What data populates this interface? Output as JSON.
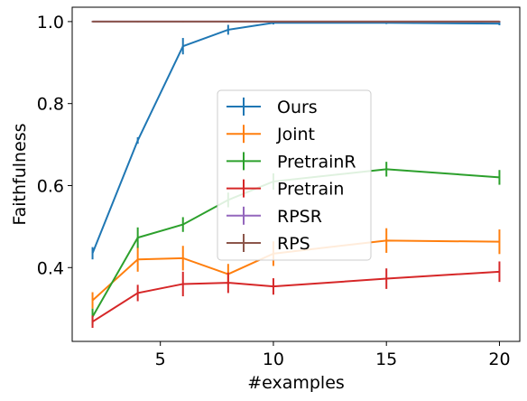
{
  "chart_data": {
    "type": "line",
    "xlabel": "#examples",
    "ylabel": "Faithfulness",
    "xlim": [
      1.1,
      20.9
    ],
    "ylim": [
      0.22,
      1.035
    ],
    "xticks": [
      5,
      10,
      15,
      20
    ],
    "xtick_labels": [
      "5",
      "10",
      "15",
      "20"
    ],
    "yticks": [
      0.4,
      0.6,
      0.8,
      1.0
    ],
    "ytick_labels": [
      "0.4",
      "0.6",
      "0.8",
      "1.0"
    ],
    "grid": false,
    "legend_position": "center",
    "x": [
      2,
      4,
      6,
      8,
      10,
      15,
      20
    ],
    "series": [
      {
        "name": "Ours",
        "color": "#1f77b4",
        "values": [
          0.435,
          0.71,
          0.94,
          0.98,
          0.997,
          0.997,
          0.995
        ],
        "errors": [
          0.015,
          0.008,
          0.02,
          0.012,
          0.004,
          0.003,
          0.004
        ]
      },
      {
        "name": "Joint",
        "color": "#ff7f0e",
        "values": [
          0.32,
          0.42,
          0.423,
          0.384,
          0.434,
          0.466,
          0.463
        ],
        "errors": [
          0.02,
          0.03,
          0.03,
          0.025,
          0.03,
          0.03,
          0.03
        ]
      },
      {
        "name": "PretrainR",
        "color": "#2ca02c",
        "values": [
          0.28,
          0.473,
          0.505,
          0.565,
          0.61,
          0.64,
          0.62
        ],
        "errors": [
          0.02,
          0.025,
          0.018,
          0.018,
          0.02,
          0.018,
          0.018
        ]
      },
      {
        "name": "Pretrain",
        "color": "#d62728",
        "values": [
          0.268,
          0.338,
          0.36,
          0.363,
          0.354,
          0.373,
          0.39
        ],
        "errors": [
          0.015,
          0.02,
          0.03,
          0.025,
          0.02,
          0.025,
          0.025
        ]
      },
      {
        "name": "RPSR",
        "color": "#9467bd",
        "values": [
          1.0,
          1.0,
          1.0,
          1.0,
          1.0,
          1.0,
          1.0
        ],
        "errors": [
          0,
          0,
          0,
          0,
          0,
          0,
          0
        ]
      },
      {
        "name": "RPS",
        "color": "#8c564b",
        "values": [
          1.0,
          1.0,
          1.0,
          1.0,
          1.0,
          1.0,
          1.0
        ],
        "errors": [
          0,
          0,
          0,
          0,
          0,
          0,
          0
        ]
      }
    ]
  }
}
